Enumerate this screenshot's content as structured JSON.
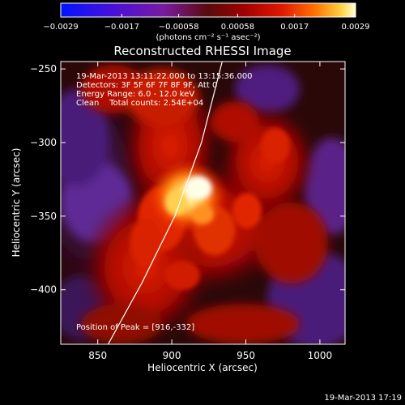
{
  "chart_data": {
    "type": "heatmap",
    "title": "Reconstructed RHESSI Image",
    "xlabel": "Heliocentric X (arcsec)",
    "ylabel": "Heliocentric Y (arcsec)",
    "xlim": [
      825,
      1017
    ],
    "ylim": [
      -437,
      -245
    ],
    "x_ticks": [
      850,
      900,
      950,
      1000
    ],
    "y_ticks": [
      -400,
      -350,
      -300,
      -250
    ],
    "colorbar": {
      "min": -0.0029,
      "max": 0.0029,
      "ticks": [
        {
          "value": -0.0029,
          "label": "−0.0029"
        },
        {
          "value": -0.0017,
          "label": "−0.0017"
        },
        {
          "value": -0.00058,
          "label": "−0.00058"
        },
        {
          "value": 0.00058,
          "label": "0.00058"
        },
        {
          "value": 0.0017,
          "label": "0.0017"
        },
        {
          "value": 0.0029,
          "label": "0.0029"
        }
      ],
      "units_label": "(photons cm⁻² s⁻¹ asec⁻²)"
    },
    "annotations": {
      "time_range": "19-Mar-2013 13:11:22.000 to 13:15:36.000",
      "detectors": "Detectors: 3F 5F 6F 7F 8F 9F, Att 0",
      "energy": "Energy Range: 6.0 - 12.0 keV",
      "clean": "Clean    Total counts: 2.54E+04",
      "peak": "Position of Peak = [916,-332]"
    },
    "peak": {
      "x": 916,
      "y": -332
    },
    "limb_curve": [
      [
        857,
        -437
      ],
      [
        880,
        -395
      ],
      [
        902,
        -350
      ],
      [
        920,
        -300
      ],
      [
        934,
        -245
      ]
    ],
    "footer_date": "19-Mar-2013 17:19"
  }
}
